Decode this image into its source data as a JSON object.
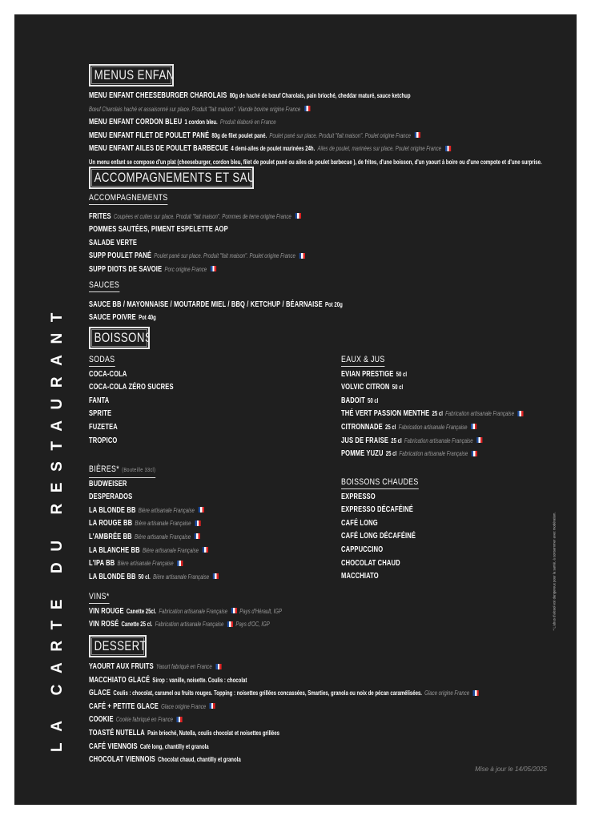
{
  "vertical_title": "LA CARTE DU RESTAURANT",
  "legal_note": "* L'abus d'alcool est dangereux pour la santé, à consommer avec modération.",
  "updated": "Mise à jour le 14/05/2025",
  "colors": {
    "background": "#1f1f1f",
    "text": "#ffffff",
    "note": "#9a9a9a"
  },
  "menus_enfant": {
    "title": "MENUS ENFANT",
    "items": [
      {
        "name": "MENU ENFANT CHEESEBURGER CHAROLAIS",
        "detail": "80g de haché de bœuf Charolais, pain brioché, cheddar maturé, sauce ketchup"
      },
      {
        "note": "Bœuf Charolais haché et assaisonné sur place. Produit \"fait maison\". Viande bovine origine France",
        "flag": true
      },
      {
        "name": "MENU ENFANT CORDON BLEU",
        "detail": "1 cordon bleu.",
        "note": "Produit élaboré en France"
      },
      {
        "name": "MENU ENFANT FILET DE POULET PANÉ",
        "detail": "80g de filet poulet pané.",
        "note": "Poulet pané sur place. Produit \"fait maison\". Poulet origine France",
        "flag": true
      },
      {
        "name": "MENU ENFANT AILES DE POULET BARBECUE",
        "detail": "4 demi-ailes de poulet marinées 24h.",
        "note": "Ailes de poulet, marinées sur place. Poulet origine France",
        "flag": true
      },
      {
        "detail": "Un menu enfant se compose d'un plat (cheeseburger, cordon bleu, filet de poulet pané ou ailes de poulet barbecue ), de frites, d'une boisson, d'un yaourt à boire ou d'une compote et d'une surprise."
      }
    ]
  },
  "accompagnements_sauces": {
    "title": "ACCOMPAGNEMENTS ET SAUCES",
    "accompagnements": {
      "heading": "ACCOMPAGNEMENTS",
      "items": [
        {
          "name": "FRITES",
          "note": "Coupées et cuites sur place. Produit \"fait maison\". Pommes de terre origine France",
          "flag": true
        },
        {
          "name": "POMMES SAUTÉES, PIMENT ESPELETTE AOP"
        },
        {
          "name": "SALADE VERTE"
        },
        {
          "name": "SUPP POULET PANÉ",
          "note": "Poulet pané sur place. Produit \"fait maison\". Poulet origine France",
          "flag": true
        },
        {
          "name": "SUPP DIOTS DE SAVOIE",
          "note": "Porc origine France",
          "flag": true
        }
      ]
    },
    "sauces": {
      "heading": "SAUCES",
      "items": [
        {
          "name": "SAUCE BB / MAYONNAISE / MOUTARDE MIEL / BBQ / KETCHUP / BÉARNAISE",
          "detail": "Pot 20g"
        },
        {
          "name": "SAUCE POIVRE",
          "detail": "Pot 40g"
        }
      ]
    }
  },
  "boissons": {
    "title": "BOISSONS",
    "sodas": {
      "heading": "SODAS",
      "items": [
        {
          "name": "COCA-COLA"
        },
        {
          "name": "COCA-COLA ZÉRO SUCRES"
        },
        {
          "name": "FANTA"
        },
        {
          "name": "SPRITE"
        },
        {
          "name": "FUZETEA"
        },
        {
          "name": "TROPICO"
        }
      ]
    },
    "eaux_jus": {
      "heading": "EAUX & JUS",
      "items": [
        {
          "name": "EVIAN PRESTIGE",
          "detail": "50 cl"
        },
        {
          "name": "VOLVIC CITRON",
          "detail": "50 cl"
        },
        {
          "name": "BADOIT",
          "detail": "50 cl"
        },
        {
          "name": "THÉ VERT PASSION MENTHE",
          "detail": "25 cl",
          "note": "Fabrication artisanale Française",
          "flag": true
        },
        {
          "name": "CITRONNADE",
          "detail": "25 cl",
          "note": "Fabrication artisanale Française",
          "flag": true
        },
        {
          "name": "JUS DE FRAISE",
          "detail": "25 cl",
          "note": "Fabrication artisanale Française",
          "flag": true
        },
        {
          "name": "POMME YUZU",
          "detail": "25 cl",
          "note": "Fabrication artisanale Française",
          "flag": true
        }
      ]
    },
    "bieres": {
      "heading": "BIÈRES*",
      "heading_note": "(Bouteille 33cl)",
      "items": [
        {
          "name": "BUDWEISER"
        },
        {
          "name": "DESPERADOS"
        },
        {
          "name": "LA BLONDE BB",
          "note": "Bière artisanale Française",
          "flag": true
        },
        {
          "name": "LA ROUGE BB",
          "note": "Bière artisanale Française",
          "flag": true
        },
        {
          "name": "L'AMBRÉE BB",
          "note": "Bière artisanale Française",
          "flag": true
        },
        {
          "name": "LA BLANCHE BB",
          "note": "Bière artisanale Française",
          "flag": true
        },
        {
          "name": "L'IPA BB",
          "note": "Bière artisanale Française",
          "flag": true
        },
        {
          "name": "LA BLONDE BB",
          "detail": "50 cl.",
          "note": "Bière artisanale Française",
          "flag": true
        }
      ]
    },
    "boissons_chaudes": {
      "heading": "BOISSONS CHAUDES",
      "items": [
        {
          "name": "EXPRESSO"
        },
        {
          "name": "EXPRESSO DÉCAFÉINÉ"
        },
        {
          "name": "CAFÉ LONG"
        },
        {
          "name": "CAFÉ LONG DÉCAFÉINÉ"
        },
        {
          "name": "CAPPUCCINO"
        },
        {
          "name": "CHOCOLAT CHAUD"
        },
        {
          "name": "MACCHIATO"
        }
      ]
    },
    "vins": {
      "heading": "VINS*",
      "items": [
        {
          "name": "VIN ROUGE",
          "detail": "Canette 25cl.",
          "note": "Fabrication artisanale Française",
          "flag": true,
          "extra": "Pays d'Hérault, IGP"
        },
        {
          "name": "VIN ROSÉ",
          "detail": "Canette 25 cl.",
          "note": "Fabrication artisanale Française",
          "flag": true,
          "extra": "Pays d'OC, IGP"
        }
      ]
    }
  },
  "desserts": {
    "title": "DESSERTS",
    "items": [
      {
        "name": "YAOURT AUX FRUITS",
        "note": "Yaourt fabriqué en France",
        "flag": true
      },
      {
        "name": "MACCHIATO GLACÉ",
        "detail": "Sirop : vanille, noisette. Coulis : chocolat"
      },
      {
        "name": "GLACE",
        "detail": "Coulis : chocolat, caramel ou fruits rouges. Topping : noisettes grillées concassées, Smarties, granola ou noix de pécan caramélisées.",
        "note": "Glace origine France",
        "flag": true
      },
      {
        "name": "CAFÉ + PETITE GLACE",
        "note": "Glace origine France",
        "flag": true
      },
      {
        "name": "COOKIE",
        "note": "Cookie fabriqué en France",
        "flag": true
      },
      {
        "name": "TOASTÉ NUTELLA",
        "detail": "Pain brioché, Nutella, coulis chocolat et noisettes grillées"
      },
      {
        "name": "CAFÉ VIENNOIS",
        "detail": "Café long, chantilly et granola"
      },
      {
        "name": "CHOCOLAT VIENNOIS",
        "detail": "Chocolat chaud, chantilly et granola"
      }
    ]
  }
}
